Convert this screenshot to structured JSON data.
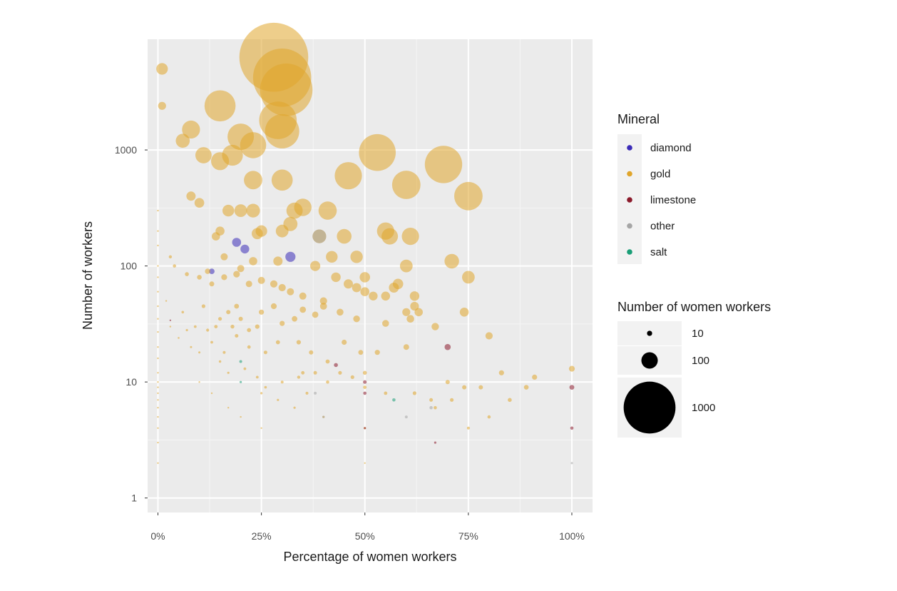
{
  "chart_data": {
    "type": "scatter",
    "title": "",
    "xlabel": "Percentage of women workers",
    "ylabel": "Number of workers",
    "x_ticks": [
      "0%",
      "25%",
      "50%",
      "75%",
      "100%"
    ],
    "x_tick_values": [
      0,
      25,
      50,
      75,
      100
    ],
    "y_ticks": [
      "1",
      "10",
      "100",
      "1000"
    ],
    "y_tick_values": [
      1,
      10,
      100,
      1000
    ],
    "xlim": [
      -2.5,
      105
    ],
    "ylim": [
      0.75,
      9000
    ],
    "y_scale": "log",
    "grid": true,
    "legend_placement": "right",
    "point_alpha": 0.55,
    "color_legend": {
      "title": "Mineral",
      "entries": [
        {
          "label": "diamond",
          "color": "#3b2bb8"
        },
        {
          "label": "gold",
          "color": "#e0a52b"
        },
        {
          "label": "limestone",
          "color": "#8b1a2b"
        },
        {
          "label": "other",
          "color": "#a6a6a6"
        },
        {
          "label": "salt",
          "color": "#1a9e77"
        }
      ]
    },
    "size_legend": {
      "title": "Number of women workers",
      "entries": [
        {
          "label": "10",
          "value": 10
        },
        {
          "label": "100",
          "value": 100
        },
        {
          "label": "1000",
          "value": 1000
        }
      ]
    },
    "series": [
      {
        "name": "gold",
        "points": [
          [
            28,
            6300
          ],
          [
            30,
            4200
          ],
          [
            31,
            3300
          ],
          [
            29,
            1800
          ],
          [
            30,
            1450
          ],
          [
            1,
            5000
          ],
          [
            1,
            2400
          ],
          [
            15,
            2400
          ],
          [
            8,
            1500
          ],
          [
            6,
            1200
          ],
          [
            20,
            1300
          ],
          [
            23,
            1100
          ],
          [
            11,
            900
          ],
          [
            18,
            900
          ],
          [
            15,
            800
          ],
          [
            53,
            950
          ],
          [
            69,
            750
          ],
          [
            46,
            600
          ],
          [
            23,
            550
          ],
          [
            30,
            550
          ],
          [
            60,
            500
          ],
          [
            75,
            400
          ],
          [
            8,
            400
          ],
          [
            10,
            350
          ],
          [
            35,
            320
          ],
          [
            41,
            300
          ],
          [
            33,
            300
          ],
          [
            17,
            300
          ],
          [
            20,
            300
          ],
          [
            23,
            300
          ],
          [
            25,
            200
          ],
          [
            30,
            200
          ],
          [
            15,
            200
          ],
          [
            14,
            180
          ],
          [
            24,
            190
          ],
          [
            32,
            230
          ],
          [
            45,
            180
          ],
          [
            39,
            180
          ],
          [
            55,
            200
          ],
          [
            56,
            180
          ],
          [
            61,
            180
          ],
          [
            42,
            120
          ],
          [
            48,
            120
          ],
          [
            71,
            110
          ],
          [
            75,
            80
          ],
          [
            60,
            100
          ],
          [
            58,
            70
          ],
          [
            38,
            100
          ],
          [
            29,
            110
          ],
          [
            23,
            110
          ],
          [
            16,
            120
          ],
          [
            12,
            90
          ],
          [
            3,
            120
          ],
          [
            4,
            100
          ],
          [
            7,
            85
          ],
          [
            10,
            80
          ],
          [
            13,
            70
          ],
          [
            16,
            80
          ],
          [
            19,
            85
          ],
          [
            20,
            95
          ],
          [
            22,
            70
          ],
          [
            25,
            75
          ],
          [
            28,
            70
          ],
          [
            30,
            65
          ],
          [
            32,
            60
          ],
          [
            35,
            55
          ],
          [
            40,
            50
          ],
          [
            43,
            80
          ],
          [
            46,
            70
          ],
          [
            48,
            65
          ],
          [
            50,
            80
          ],
          [
            50,
            60
          ],
          [
            52,
            55
          ],
          [
            55,
            55
          ],
          [
            57,
            65
          ],
          [
            60,
            40
          ],
          [
            62,
            55
          ],
          [
            62,
            45
          ],
          [
            63,
            40
          ],
          [
            61,
            35
          ],
          [
            55,
            32
          ],
          [
            48,
            35
          ],
          [
            44,
            40
          ],
          [
            40,
            45
          ],
          [
            38,
            38
          ],
          [
            35,
            42
          ],
          [
            33,
            35
          ],
          [
            30,
            32
          ],
          [
            28,
            45
          ],
          [
            25,
            40
          ],
          [
            24,
            30
          ],
          [
            22,
            28
          ],
          [
            20,
            35
          ],
          [
            19,
            45
          ],
          [
            18,
            30
          ],
          [
            17,
            40
          ],
          [
            15,
            35
          ],
          [
            14,
            30
          ],
          [
            12,
            28
          ],
          [
            9,
            30
          ],
          [
            7,
            28
          ],
          [
            5,
            24
          ],
          [
            8,
            20
          ],
          [
            10,
            18
          ],
          [
            11,
            45
          ],
          [
            13,
            22
          ],
          [
            16,
            18
          ],
          [
            19,
            25
          ],
          [
            22,
            20
          ],
          [
            26,
            18
          ],
          [
            29,
            22
          ],
          [
            34,
            22
          ],
          [
            37,
            18
          ],
          [
            41,
            15
          ],
          [
            45,
            22
          ],
          [
            49,
            18
          ],
          [
            53,
            18
          ],
          [
            60,
            20
          ],
          [
            67,
            30
          ],
          [
            74,
            40
          ],
          [
            80,
            25
          ],
          [
            15,
            15
          ],
          [
            17,
            12
          ],
          [
            21,
            13
          ],
          [
            24,
            11
          ],
          [
            26,
            9
          ],
          [
            30,
            10
          ],
          [
            34,
            11
          ],
          [
            38,
            12
          ],
          [
            41,
            10
          ],
          [
            44,
            12
          ],
          [
            47,
            11
          ],
          [
            50,
            12
          ],
          [
            50,
            9
          ],
          [
            55,
            8
          ],
          [
            62,
            8
          ],
          [
            66,
            7
          ],
          [
            71,
            7
          ],
          [
            74,
            9
          ],
          [
            78,
            9
          ],
          [
            83,
            12
          ],
          [
            85,
            7
          ],
          [
            89,
            9
          ],
          [
            91,
            11
          ],
          [
            100,
            13
          ],
          [
            80,
            5
          ],
          [
            75,
            4
          ],
          [
            70,
            10
          ],
          [
            67,
            6
          ],
          [
            36,
            8
          ],
          [
            29,
            7
          ],
          [
            25,
            8
          ],
          [
            20,
            5
          ],
          [
            17,
            6
          ],
          [
            13,
            8
          ],
          [
            10,
            10
          ],
          [
            25,
            4
          ],
          [
            33,
            6
          ],
          [
            40,
            5
          ],
          [
            50,
            2
          ],
          [
            50,
            4
          ],
          [
            35,
            12
          ],
          [
            2,
            50
          ],
          [
            3,
            30
          ],
          [
            6,
            40
          ]
        ]
      },
      {
        "name": "diamond",
        "points": [
          [
            19,
            160
          ],
          [
            21,
            140
          ],
          [
            32,
            120
          ],
          [
            13,
            90
          ]
        ]
      },
      {
        "name": "limestone",
        "points": [
          [
            70,
            20
          ],
          [
            100,
            9
          ],
          [
            67,
            3
          ],
          [
            50,
            10
          ],
          [
            50,
            8
          ],
          [
            50,
            4
          ],
          [
            100,
            4
          ],
          [
            43,
            14
          ],
          [
            3,
            34
          ]
        ]
      },
      {
        "name": "other",
        "points": [
          [
            39,
            180
          ],
          [
            38,
            8
          ],
          [
            60,
            5
          ],
          [
            40,
            5
          ],
          [
            100,
            2
          ],
          [
            66,
            6
          ]
        ]
      },
      {
        "name": "salt",
        "points": [
          [
            57,
            7
          ],
          [
            20,
            15
          ],
          [
            20,
            10
          ]
        ]
      },
      {
        "name": "gold",
        "points": [
          [
            0,
            300
          ],
          [
            0,
            200
          ],
          [
            0,
            150
          ],
          [
            0,
            100
          ],
          [
            0,
            80
          ],
          [
            0,
            60
          ],
          [
            0,
            45
          ],
          [
            0,
            35
          ],
          [
            0,
            27
          ],
          [
            0,
            20
          ],
          [
            0,
            16
          ],
          [
            0,
            12
          ],
          [
            0,
            10
          ],
          [
            0,
            9
          ],
          [
            0,
            8
          ],
          [
            0,
            7
          ],
          [
            0,
            6
          ],
          [
            0,
            5
          ],
          [
            0,
            4
          ],
          [
            0,
            3
          ],
          [
            0,
            2
          ]
        ]
      }
    ]
  }
}
